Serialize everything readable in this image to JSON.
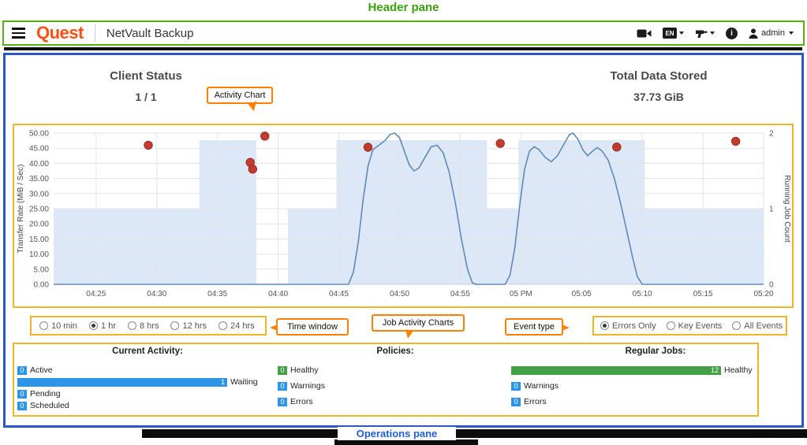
{
  "annotations": {
    "header_pane": "Header pane",
    "activity_chart": "Activity Chart",
    "time_window": "Time window",
    "job_activity_charts": "Job Activity Charts",
    "event_type": "Event type",
    "operations_pane": "Operations pane"
  },
  "header": {
    "logo": "Quest",
    "app_title": "NetVault Backup",
    "language": "EN",
    "user": "admin"
  },
  "summary": {
    "client_status_label": "Client Status",
    "client_status_value": "1 / 1",
    "total_data_label": "Total Data Stored",
    "total_data_value": "37.73 GiB"
  },
  "time_window": {
    "options": [
      "10 min",
      "1 hr",
      "8 hrs",
      "12 hrs",
      "24 hrs"
    ],
    "selected": "1 hr"
  },
  "event_type": {
    "options": [
      "Errors Only",
      "Key Events",
      "All Events"
    ],
    "selected": "Errors Only"
  },
  "chart_data": {
    "type": "line",
    "title": "Activity Chart",
    "ylabel_left": "Transfer Rate (MiB / Sec)",
    "ylabel_right": "Running Job Count",
    "ylim_left": [
      0,
      50
    ],
    "ylim_right": [
      0,
      2
    ],
    "grid": true,
    "y_ticks_left": [
      "0.00",
      "5.00",
      "10.00",
      "15.00",
      "20.00",
      "25.00",
      "30.00",
      "35.00",
      "40.00",
      "45.00",
      "50.00"
    ],
    "y_ticks_right": [
      "0",
      "1",
      "2"
    ],
    "x_ticks": [
      "04:25",
      "04:30",
      "04:35",
      "04:40",
      "04:45",
      "04:50",
      "04:55",
      "05 PM",
      "05:05",
      "05:10",
      "05:15",
      "05:20"
    ],
    "x_tick_minutes": [
      5,
      10,
      15,
      20,
      25,
      30,
      35,
      40,
      45,
      50,
      55,
      60
    ],
    "x_domain_minutes": [
      1.5,
      60
    ],
    "series": [
      {
        "name": "Running Job Count",
        "type": "step-area",
        "color": "#dce8f8",
        "steps": [
          [
            1.5,
            13.5,
            1
          ],
          [
            13.5,
            18.2,
            2
          ],
          [
            18.2,
            20.8,
            0
          ],
          [
            20.8,
            24.8,
            1
          ],
          [
            24.8,
            37.2,
            2
          ],
          [
            37.2,
            39.8,
            1
          ],
          [
            39.8,
            50.2,
            2
          ],
          [
            50.2,
            60,
            1
          ]
        ]
      },
      {
        "name": "Transfer Rate",
        "type": "line",
        "color": "#5f8ab8",
        "points": [
          [
            1.5,
            0
          ],
          [
            25.8,
            0
          ],
          [
            26.2,
            4
          ],
          [
            26.6,
            14
          ],
          [
            27.0,
            28
          ],
          [
            27.4,
            39
          ],
          [
            27.8,
            44.5
          ],
          [
            28.3,
            46
          ],
          [
            28.8,
            47.5
          ],
          [
            29.2,
            49.5
          ],
          [
            29.6,
            50
          ],
          [
            30.0,
            48.5
          ],
          [
            30.4,
            44
          ],
          [
            30.8,
            39.5
          ],
          [
            31.2,
            37.5
          ],
          [
            31.6,
            38.5
          ],
          [
            32.1,
            42
          ],
          [
            32.6,
            45.5
          ],
          [
            33.1,
            46
          ],
          [
            33.6,
            43.5
          ],
          [
            34.1,
            37
          ],
          [
            34.6,
            27
          ],
          [
            35.1,
            15
          ],
          [
            35.6,
            5
          ],
          [
            36.0,
            0.5
          ],
          [
            36.3,
            0
          ],
          [
            38.7,
            0
          ],
          [
            39.1,
            3
          ],
          [
            39.5,
            12
          ],
          [
            39.9,
            26
          ],
          [
            40.3,
            38
          ],
          [
            40.7,
            44
          ],
          [
            41.1,
            45.5
          ],
          [
            41.5,
            44.5
          ],
          [
            42.0,
            42
          ],
          [
            42.5,
            40.5
          ],
          [
            43.0,
            42.5
          ],
          [
            43.5,
            46
          ],
          [
            44.0,
            49.5
          ],
          [
            44.3,
            50
          ],
          [
            44.7,
            48
          ],
          [
            45.1,
            44.5
          ],
          [
            45.5,
            42.5
          ],
          [
            45.9,
            44
          ],
          [
            46.3,
            45.2
          ],
          [
            46.7,
            44
          ],
          [
            47.2,
            41
          ],
          [
            47.7,
            35
          ],
          [
            48.2,
            27
          ],
          [
            48.7,
            18
          ],
          [
            49.2,
            9
          ],
          [
            49.6,
            2.5
          ],
          [
            50.0,
            0
          ],
          [
            60,
            0
          ]
        ]
      },
      {
        "name": "Error Events",
        "type": "scatter",
        "color": "#c53a2f",
        "points": [
          [
            9.3,
            46
          ],
          [
            17.7,
            40.3
          ],
          [
            17.9,
            38.1
          ],
          [
            18.9,
            49
          ],
          [
            27.4,
            45.3
          ],
          [
            38.3,
            46.6
          ],
          [
            47.9,
            45.4
          ],
          [
            57.7,
            47.3
          ]
        ]
      }
    ]
  },
  "operations": {
    "current_activity": {
      "title": "Current Activity:",
      "rows": [
        {
          "value": 0,
          "label": "Active",
          "color": "blue"
        },
        {
          "value": 1,
          "label": "Waiting",
          "color": "blue"
        },
        {
          "value": 0,
          "label": "Pending",
          "color": "blue"
        },
        {
          "value": 0,
          "label": "Scheduled",
          "color": "blue"
        }
      ]
    },
    "policies": {
      "title": "Policies:",
      "rows": [
        {
          "value": 0,
          "label": "Healthy",
          "color": "green"
        },
        {
          "value": 0,
          "label": "Warnings",
          "color": "blue"
        },
        {
          "value": 0,
          "label": "Errors",
          "color": "blue"
        }
      ]
    },
    "regular_jobs": {
      "title": "Regular Jobs:",
      "rows": [
        {
          "value": 12,
          "label": "Healthy",
          "color": "green"
        },
        {
          "value": 0,
          "label": "Warnings",
          "color": "blue"
        },
        {
          "value": 0,
          "label": "Errors",
          "color": "blue"
        }
      ]
    }
  },
  "colors": {
    "annotation_green": "#3aa10b",
    "annotation_blue_border": "#2a57c4",
    "annotation_yellow": "#f0b429",
    "annotation_orange": "#ff8000",
    "operations_pane_label_blue": "#1e5ed6",
    "quest_orange": "#fb4f14",
    "bar_blue": "#2d95e8",
    "bar_green": "#43a047",
    "error_dot_red": "#c53a2f",
    "line_blue": "#5f8ab8",
    "job_area_blue": "#dce8f8"
  }
}
